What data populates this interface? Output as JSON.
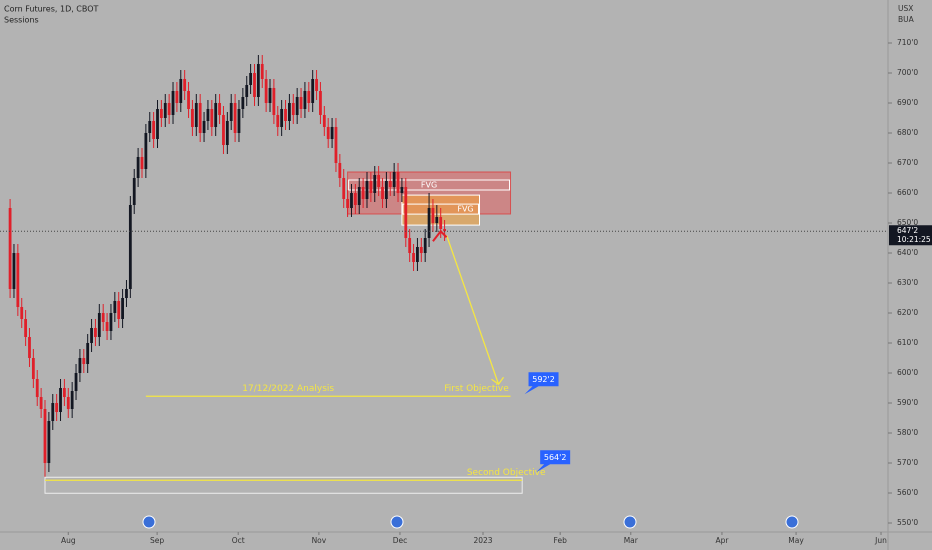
{
  "chart_data": {
    "type": "candlestick",
    "title": "Corn Futures, 1D, CBOT",
    "subtitle": "Sessions",
    "currency": "USX",
    "unit": "BUA",
    "categories": [
      null,
      null,
      null,
      null,
      null,
      null,
      null,
      null,
      null,
      null,
      null,
      null,
      null,
      null,
      null,
      null,
      null,
      null,
      null,
      null,
      null,
      null,
      null,
      null,
      null,
      null,
      null,
      null,
      null,
      null,
      null,
      null,
      null,
      null,
      null,
      null,
      null,
      null,
      null,
      null,
      null,
      null,
      null,
      null,
      null,
      null,
      null,
      null,
      null,
      null,
      null,
      null,
      null,
      null,
      null,
      null,
      null,
      null,
      null,
      null,
      null,
      null,
      null,
      null,
      null,
      null,
      null,
      null,
      null,
      null,
      null,
      null,
      null,
      null,
      null,
      null,
      null,
      null,
      null,
      null,
      null,
      null,
      null,
      null,
      null,
      null,
      null,
      null,
      null,
      null,
      null,
      null,
      null,
      null,
      null,
      null,
      null,
      null,
      null,
      null,
      null,
      null,
      null,
      null,
      null,
      null,
      null,
      null,
      null,
      null,
      null,
      null,
      null
    ],
    "open": [
      655,
      628,
      640,
      622,
      618,
      612,
      605,
      598,
      592,
      588,
      570,
      584,
      590,
      587,
      595,
      592,
      588,
      594,
      600,
      605,
      603,
      610,
      615,
      612,
      620,
      617,
      614,
      620,
      624,
      618,
      625,
      628,
      656,
      665,
      672,
      668,
      680,
      684,
      678,
      688,
      685,
      690,
      686,
      694,
      690,
      698,
      694,
      688,
      682,
      690,
      680,
      684,
      688,
      682,
      690,
      686,
      676,
      684,
      690,
      680,
      688,
      692,
      696,
      700,
      692,
      703,
      698,
      690,
      695,
      686,
      682,
      688,
      684,
      690,
      686,
      692,
      688,
      694,
      690,
      698,
      694,
      686,
      682,
      678,
      682,
      670,
      665,
      658,
      655,
      660,
      656,
      662,
      658,
      664,
      660,
      666,
      662,
      658,
      664,
      662,
      667,
      660,
      662,
      645,
      640,
      637,
      642,
      640,
      645,
      655,
      650,
      652,
      648
    ],
    "high": [
      658,
      643,
      643,
      625,
      621,
      615,
      608,
      601,
      595,
      591,
      587,
      593,
      593,
      598,
      598,
      595,
      597,
      603,
      608,
      608,
      613,
      618,
      618,
      623,
      623,
      620,
      623,
      627,
      627,
      628,
      631,
      659,
      668,
      675,
      675,
      683,
      687,
      687,
      691,
      691,
      693,
      693,
      697,
      697,
      701,
      701,
      697,
      691,
      693,
      693,
      687,
      691,
      691,
      693,
      693,
      689,
      687,
      693,
      693,
      691,
      695,
      699,
      703,
      703,
      706,
      706,
      701,
      698,
      698,
      689,
      691,
      691,
      693,
      693,
      695,
      695,
      697,
      697,
      701,
      701,
      697,
      689,
      685,
      685,
      685,
      673,
      668,
      661,
      663,
      663,
      665,
      665,
      667,
      667,
      669,
      669,
      665,
      667,
      667,
      670,
      670,
      665,
      665,
      648,
      643,
      645,
      645,
      648,
      660,
      658,
      656,
      655,
      651
    ],
    "low": [
      625,
      625,
      619,
      615,
      609,
      602,
      595,
      589,
      585,
      563,
      567,
      581,
      584,
      584,
      589,
      585,
      585,
      591,
      597,
      600,
      600,
      607,
      609,
      609,
      614,
      611,
      611,
      617,
      615,
      615,
      622,
      625,
      653,
      662,
      665,
      665,
      677,
      675,
      675,
      682,
      682,
      683,
      683,
      687,
      687,
      691,
      685,
      679,
      679,
      677,
      677,
      681,
      679,
      679,
      683,
      673,
      673,
      681,
      677,
      677,
      685,
      689,
      693,
      689,
      689,
      695,
      687,
      687,
      683,
      679,
      679,
      681,
      681,
      683,
      683,
      685,
      685,
      687,
      687,
      691,
      683,
      679,
      675,
      675,
      667,
      662,
      655,
      652,
      652,
      653,
      653,
      655,
      655,
      657,
      657,
      659,
      655,
      655,
      659,
      659,
      657,
      657,
      642,
      637,
      634,
      634,
      637,
      637,
      642,
      647,
      647,
      645,
      644
    ],
    "close": [
      628,
      640,
      622,
      618,
      612,
      605,
      598,
      592,
      588,
      570,
      584,
      590,
      587,
      595,
      592,
      588,
      594,
      600,
      605,
      603,
      610,
      615,
      612,
      620,
      617,
      614,
      620,
      624,
      618,
      625,
      628,
      656,
      665,
      672,
      668,
      680,
      684,
      678,
      688,
      685,
      690,
      686,
      694,
      690,
      698,
      694,
      688,
      682,
      690,
      680,
      684,
      688,
      682,
      690,
      686,
      676,
      684,
      690,
      680,
      688,
      692,
      696,
      700,
      692,
      703,
      698,
      690,
      695,
      686,
      682,
      688,
      684,
      690,
      686,
      692,
      688,
      694,
      690,
      698,
      694,
      686,
      682,
      678,
      682,
      670,
      665,
      658,
      655,
      660,
      656,
      662,
      658,
      664,
      660,
      666,
      662,
      658,
      664,
      662,
      667,
      660,
      662,
      645,
      640,
      637,
      642,
      640,
      645,
      655,
      650,
      652,
      648,
      647.25
    ],
    "up_color": "#131722",
    "down_color": "#e0202a",
    "last_price": 647.25,
    "last_price_label": "647'2",
    "countdown": "10:21:25",
    "xlim": [
      -2.6,
      226.3
    ],
    "xticks": [
      {
        "value": 15,
        "label": "Aug"
      },
      {
        "value": 37.9,
        "label": "Sep"
      },
      {
        "value": 58.8,
        "label": "Oct"
      },
      {
        "value": 79.6,
        "label": "Nov"
      },
      {
        "value": 100.5,
        "label": "Dec"
      },
      {
        "value": 121.9,
        "label": "2023"
      },
      {
        "value": 141.8,
        "label": "Feb"
      },
      {
        "value": 160,
        "label": "Mar"
      },
      {
        "value": 183.5,
        "label": "Apr"
      },
      {
        "value": 202.6,
        "label": "May"
      },
      {
        "value": 224.5,
        "label": "Jun"
      }
    ],
    "ylim": [
      547.67,
      724.33
    ],
    "yticks": [
      {
        "value": 550,
        "label": "550'0"
      },
      {
        "value": 560,
        "label": "560'0"
      },
      {
        "value": 570,
        "label": "570'0"
      },
      {
        "value": 580,
        "label": "580'0"
      },
      {
        "value": 590,
        "label": "590'0"
      },
      {
        "value": 600,
        "label": "600'0"
      },
      {
        "value": 610,
        "label": "610'0"
      },
      {
        "value": 620,
        "label": "620'0"
      },
      {
        "value": 630,
        "label": "630'0"
      },
      {
        "value": 640,
        "label": "640'0"
      },
      {
        "value": 650,
        "label": "650'0"
      },
      {
        "value": 660,
        "label": "660'0"
      },
      {
        "value": 670,
        "label": "670'0"
      },
      {
        "value": 680,
        "label": "680'0"
      },
      {
        "value": 690,
        "label": "690'0"
      },
      {
        "value": 700,
        "label": "700'0"
      },
      {
        "value": 710,
        "label": "710'0"
      }
    ],
    "zones": [
      {
        "label": "FVG",
        "top": 667,
        "bottom": 653,
        "from": 87,
        "to": 129,
        "color": "rgba(235,80,80,0.45)"
      },
      {
        "label": "FVG",
        "top": 659.3,
        "bottom": 649.3,
        "from": 101,
        "to": 121,
        "color": "rgba(240,160,60,0.6)"
      }
    ],
    "analysis_label": "17/12/2022 Analysis",
    "objectives": [
      {
        "name": "First Objective",
        "price": 592.25,
        "price_label": "592'2",
        "from": 35,
        "to": 129
      },
      {
        "name": "Second Objective",
        "price": 564.25,
        "price_label": "564'2",
        "from": 9,
        "to": 132
      }
    ]
  }
}
